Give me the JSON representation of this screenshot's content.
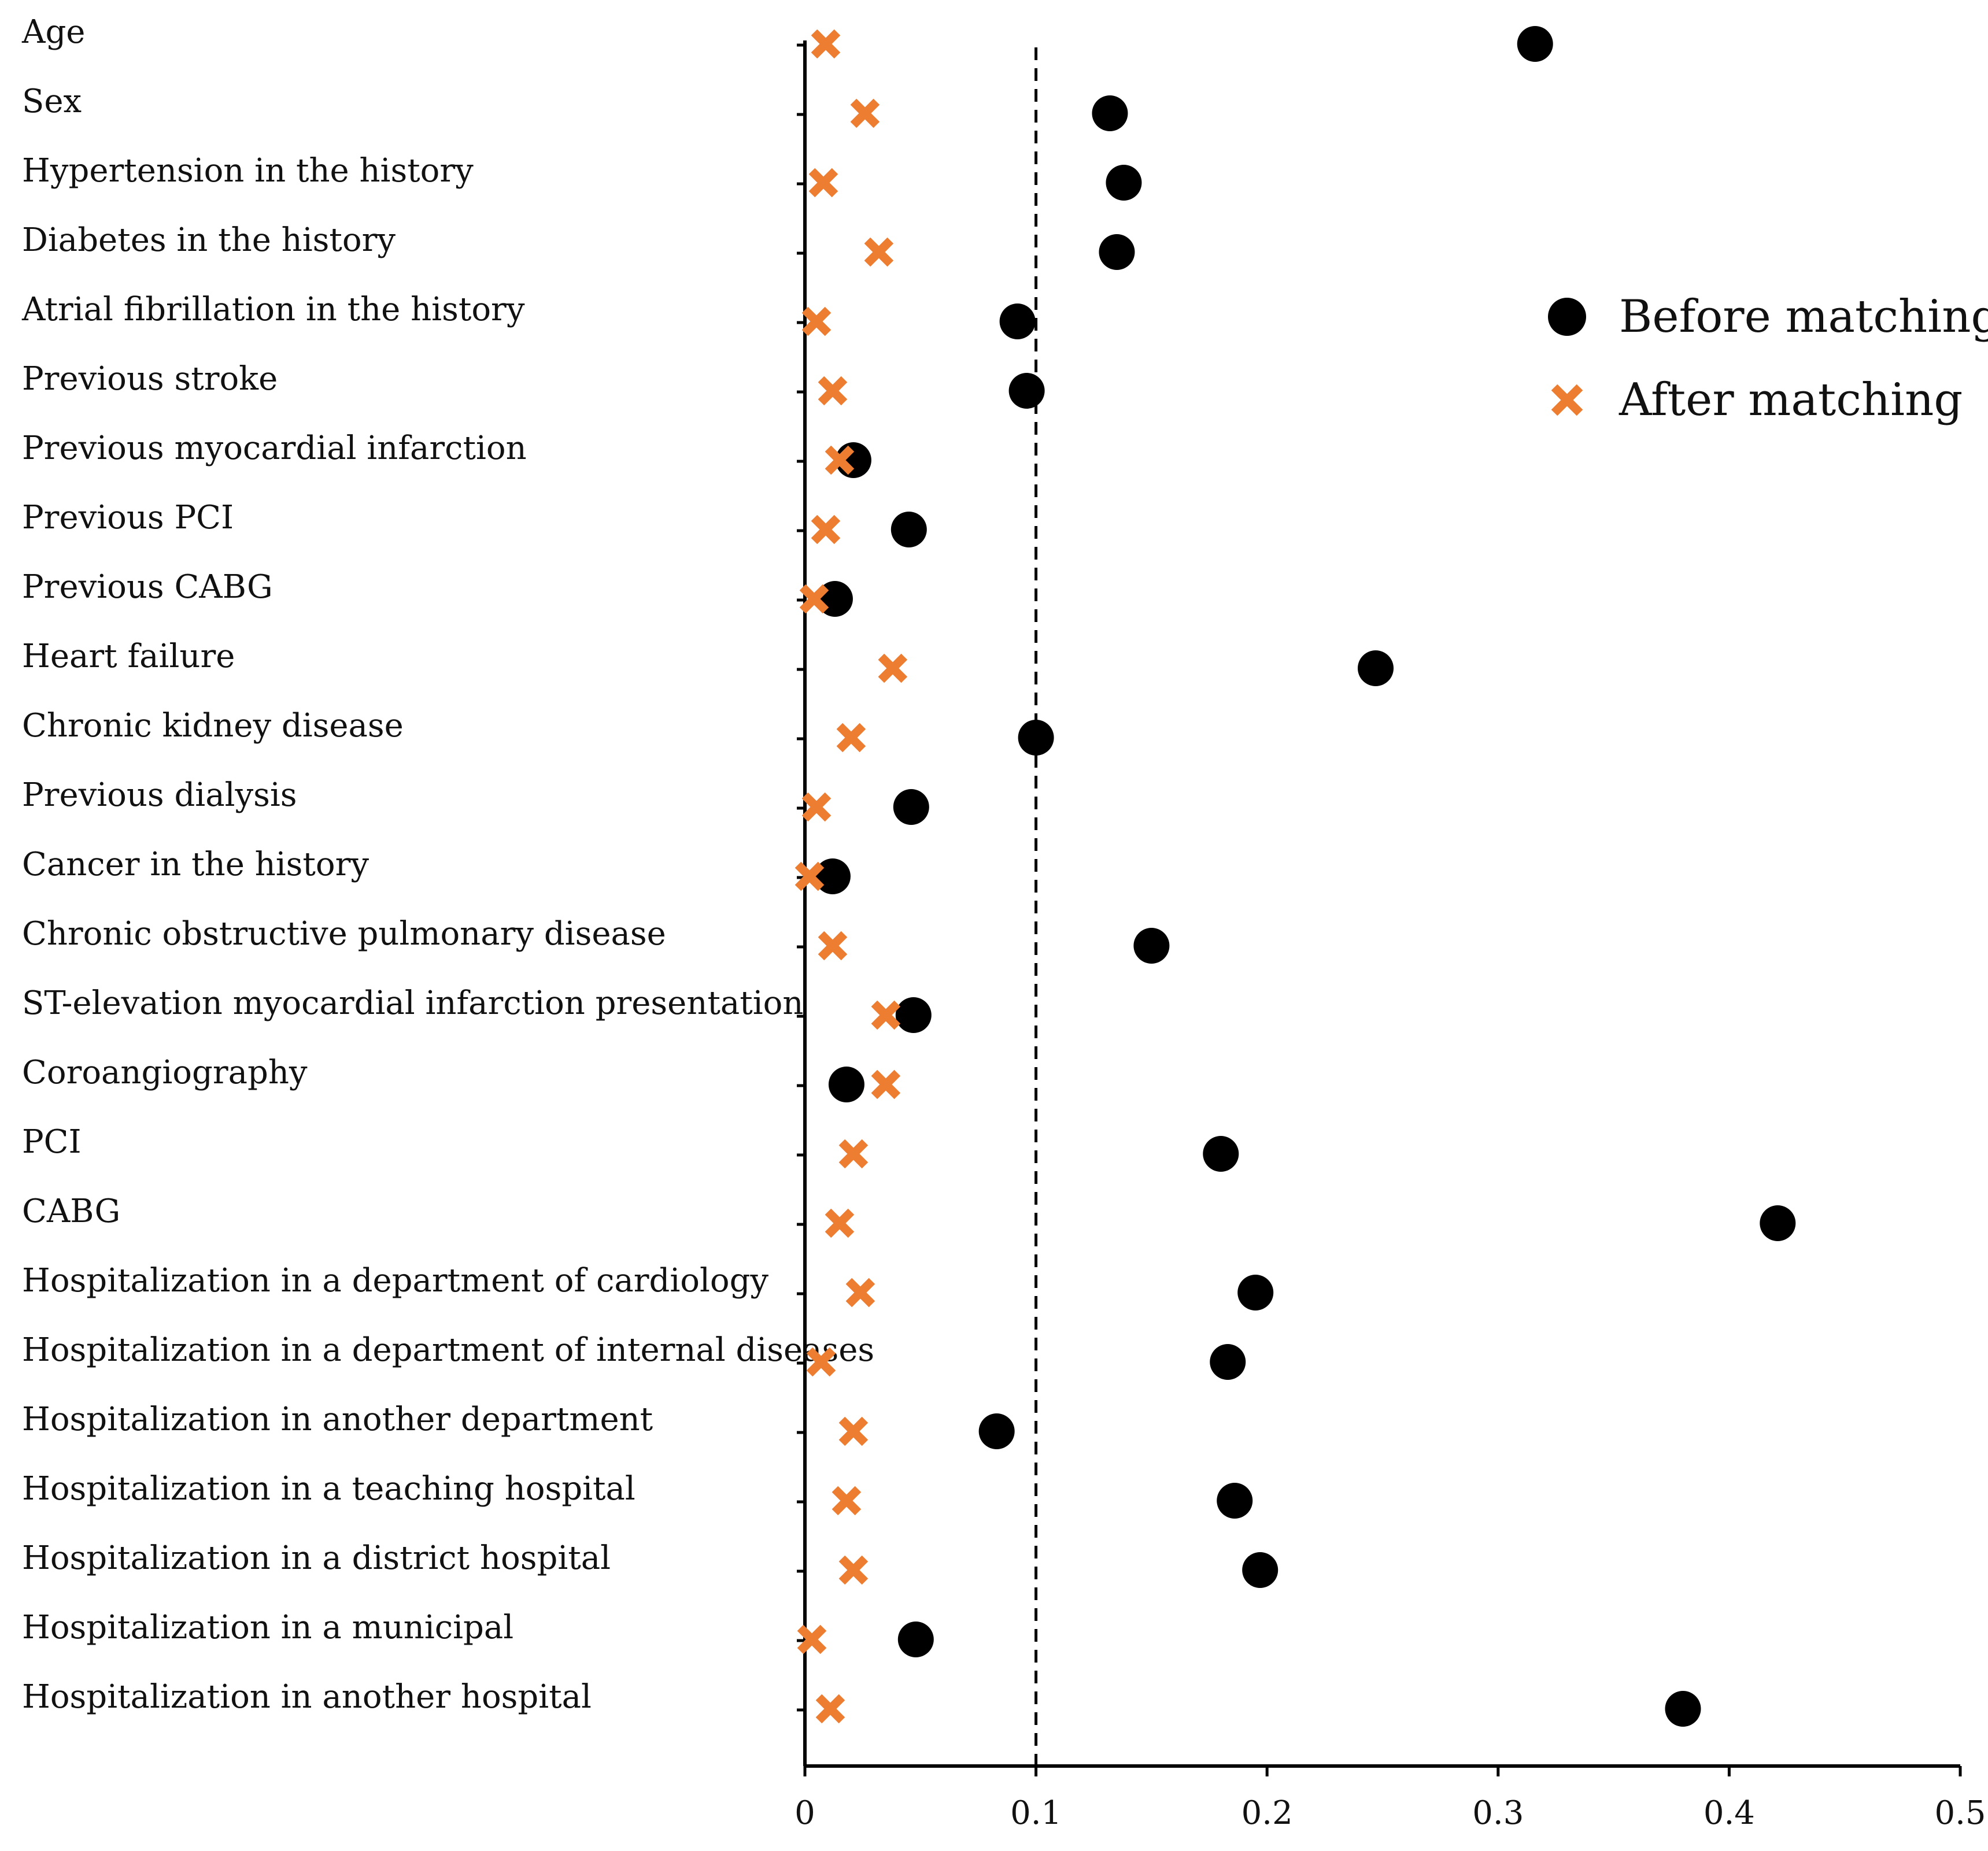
{
  "chart_data": {
    "type": "scatter",
    "title": "",
    "xlabel": "",
    "ylabel": "",
    "xlim": [
      0,
      0.5
    ],
    "x_ticks": [
      "0",
      "0.1",
      "0.2",
      "0.3",
      "0.4",
      "0.5"
    ],
    "x_tick_values": [
      0,
      0.1,
      0.2,
      0.3,
      0.4,
      0.5
    ],
    "reference_line": 0.1,
    "grid": false,
    "legend_position": "top-right",
    "categories": [
      "Age",
      "Sex",
      "Hypertension  in the history",
      "Diabetes in the history",
      "Atrial fibrillation in the history",
      "Previous stroke",
      "Previous myocardial  infarction",
      "Previous PCI",
      "Previous CABG",
      "Heart failure",
      "Chronic kidney  disease",
      "Previous dialysis",
      "Cancer in the history",
      "Chronic obstructive pulmonary  disease",
      "ST-elevation  myocardial infarction presentation",
      "Coroangiography",
      "PCI",
      "CABG",
      "Hospitalization in a department  of  cardiology",
      "Hospitalization in a department  of  internal diseases",
      "Hospitalization in another department",
      "Hospitalization in a teaching  hospital",
      "Hospitalization in a district hospital",
      "Hospitalization in a municipal",
      "Hospitalization in another hospital"
    ],
    "series": [
      {
        "name": "Before matching",
        "marker": "circle",
        "color": "#000000",
        "values": [
          0.316,
          0.132,
          0.138,
          0.135,
          0.092,
          0.096,
          0.021,
          0.045,
          0.013,
          0.247,
          0.1,
          0.046,
          0.012,
          0.15,
          0.047,
          0.018,
          0.18,
          0.421,
          0.195,
          0.183,
          0.083,
          0.186,
          0.197,
          0.048,
          0.38
        ]
      },
      {
        "name": "After matching",
        "marker": "x",
        "color": "#ED7D31",
        "values": [
          0.009,
          0.026,
          0.008,
          0.032,
          0.005,
          0.012,
          0.015,
          0.009,
          0.004,
          0.038,
          0.02,
          0.005,
          0.002,
          0.012,
          0.035,
          0.035,
          0.021,
          0.015,
          0.024,
          0.007,
          0.021,
          0.018,
          0.021,
          0.003,
          0.011
        ]
      }
    ]
  }
}
